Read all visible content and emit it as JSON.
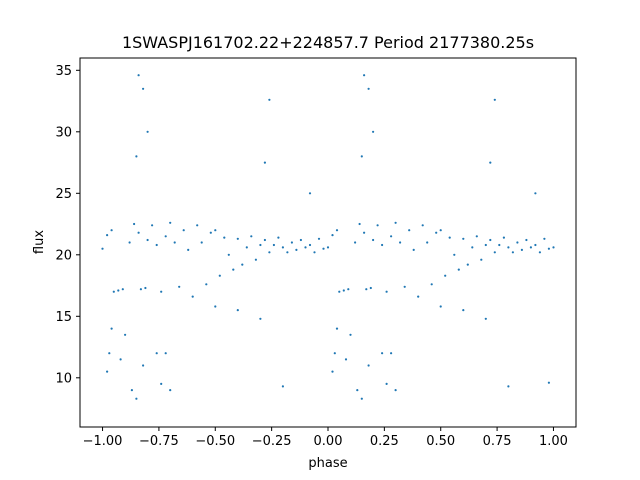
{
  "chart_data": {
    "type": "scatter",
    "title": "1SWASPJ161702.22+224857.7 Period 2177380.25s",
    "xlabel": "phase",
    "ylabel": "flux",
    "xlim": [
      -1.1,
      1.1
    ],
    "ylim": [
      6.0,
      36.0
    ],
    "xticks": [
      -1.0,
      -0.75,
      -0.5,
      -0.25,
      0.0,
      0.25,
      0.5,
      0.75,
      1.0
    ],
    "xtick_labels": [
      "−1.00",
      "−0.75",
      "−0.50",
      "−0.25",
      "0.00",
      "0.25",
      "0.50",
      "0.75",
      "1.00"
    ],
    "yticks": [
      10,
      15,
      20,
      25,
      30,
      35
    ],
    "ytick_labels": [
      "10",
      "15",
      "20",
      "25",
      "30",
      "35"
    ],
    "grid": false,
    "marker_color": "#1f77b4",
    "series": [
      {
        "values_description_omitted": true,
        "points": [
          [
            -1.0,
            20.5
          ],
          [
            -0.98,
            21.6
          ],
          [
            -0.96,
            22.0
          ],
          [
            -0.95,
            17.0
          ],
          [
            -0.93,
            17.1
          ],
          [
            -0.91,
            17.2
          ],
          [
            -0.88,
            21.0
          ],
          [
            -0.86,
            22.5
          ],
          [
            -0.84,
            21.8
          ],
          [
            -0.83,
            17.2
          ],
          [
            -0.81,
            17.3
          ],
          [
            -0.8,
            21.2
          ],
          [
            -0.78,
            22.4
          ],
          [
            -0.76,
            20.8
          ],
          [
            -0.74,
            17.0
          ],
          [
            -0.72,
            21.5
          ],
          [
            -0.7,
            22.6
          ],
          [
            -0.68,
            21.0
          ],
          [
            -0.66,
            17.4
          ],
          [
            -0.64,
            22.0
          ],
          [
            -0.62,
            20.4
          ],
          [
            -0.6,
            16.6
          ],
          [
            -0.58,
            22.4
          ],
          [
            -0.56,
            21.0
          ],
          [
            -0.54,
            17.6
          ],
          [
            -0.52,
            21.8
          ],
          [
            -0.5,
            22.0
          ],
          [
            -0.48,
            18.3
          ],
          [
            -0.46,
            21.4
          ],
          [
            -0.44,
            20.0
          ],
          [
            -0.42,
            18.8
          ],
          [
            -0.4,
            21.3
          ],
          [
            -0.38,
            19.2
          ],
          [
            -0.36,
            20.6
          ],
          [
            -0.34,
            21.5
          ],
          [
            -0.32,
            19.6
          ],
          [
            -0.3,
            20.8
          ],
          [
            -0.28,
            21.2
          ],
          [
            -0.26,
            20.2
          ],
          [
            -0.24,
            20.8
          ],
          [
            -0.22,
            21.4
          ],
          [
            -0.2,
            20.6
          ],
          [
            -0.18,
            20.2
          ],
          [
            -0.16,
            21.0
          ],
          [
            -0.14,
            20.4
          ],
          [
            -0.12,
            21.2
          ],
          [
            -0.1,
            20.6
          ],
          [
            -0.08,
            20.8
          ],
          [
            -0.06,
            20.2
          ],
          [
            -0.04,
            21.3
          ],
          [
            -0.02,
            20.5
          ],
          [
            0.0,
            20.6
          ],
          [
            0.02,
            21.6
          ],
          [
            0.04,
            22.0
          ],
          [
            0.05,
            17.0
          ],
          [
            0.07,
            17.1
          ],
          [
            0.09,
            17.2
          ],
          [
            0.12,
            21.0
          ],
          [
            0.14,
            22.5
          ],
          [
            0.16,
            21.8
          ],
          [
            0.17,
            17.2
          ],
          [
            0.19,
            17.3
          ],
          [
            0.2,
            21.2
          ],
          [
            0.22,
            22.4
          ],
          [
            0.24,
            20.8
          ],
          [
            0.26,
            17.0
          ],
          [
            0.28,
            21.5
          ],
          [
            0.3,
            22.6
          ],
          [
            0.32,
            21.0
          ],
          [
            0.34,
            17.4
          ],
          [
            0.36,
            22.0
          ],
          [
            0.38,
            20.4
          ],
          [
            0.4,
            16.6
          ],
          [
            0.42,
            22.4
          ],
          [
            0.44,
            21.0
          ],
          [
            0.46,
            17.6
          ],
          [
            0.48,
            21.8
          ],
          [
            0.5,
            22.0
          ],
          [
            0.52,
            18.3
          ],
          [
            0.54,
            21.4
          ],
          [
            0.56,
            20.0
          ],
          [
            0.58,
            18.8
          ],
          [
            0.6,
            21.3
          ],
          [
            0.62,
            19.2
          ],
          [
            0.64,
            20.6
          ],
          [
            0.66,
            21.5
          ],
          [
            0.68,
            19.6
          ],
          [
            0.7,
            20.8
          ],
          [
            0.72,
            21.2
          ],
          [
            0.74,
            20.2
          ],
          [
            0.76,
            20.8
          ],
          [
            0.78,
            21.4
          ],
          [
            0.8,
            20.6
          ],
          [
            0.82,
            20.2
          ],
          [
            0.84,
            21.0
          ],
          [
            0.86,
            20.4
          ],
          [
            0.88,
            21.2
          ],
          [
            0.9,
            20.6
          ],
          [
            0.92,
            20.8
          ],
          [
            0.94,
            20.2
          ],
          [
            0.96,
            21.3
          ],
          [
            0.98,
            20.5
          ],
          [
            1.0,
            20.6
          ],
          [
            -0.84,
            34.6
          ],
          [
            -0.82,
            33.5
          ],
          [
            -0.8,
            30.0
          ],
          [
            -0.85,
            28.0
          ],
          [
            0.16,
            34.6
          ],
          [
            0.18,
            33.5
          ],
          [
            0.2,
            30.0
          ],
          [
            0.15,
            28.0
          ],
          [
            -0.26,
            32.6
          ],
          [
            0.74,
            32.6
          ],
          [
            -0.28,
            27.5
          ],
          [
            0.72,
            27.5
          ],
          [
            -0.08,
            25.0
          ],
          [
            0.92,
            25.0
          ],
          [
            -0.98,
            10.5
          ],
          [
            -0.97,
            12.0
          ],
          [
            -0.96,
            14.0
          ],
          [
            -0.92,
            11.5
          ],
          [
            -0.9,
            13.5
          ],
          [
            -0.87,
            9.0
          ],
          [
            -0.85,
            8.3
          ],
          [
            -0.82,
            11.0
          ],
          [
            -0.76,
            12.0
          ],
          [
            -0.74,
            9.5
          ],
          [
            -0.72,
            12.0
          ],
          [
            -0.7,
            9.0
          ],
          [
            0.02,
            10.5
          ],
          [
            0.03,
            12.0
          ],
          [
            0.04,
            14.0
          ],
          [
            0.08,
            11.5
          ],
          [
            0.1,
            13.5
          ],
          [
            0.13,
            9.0
          ],
          [
            0.15,
            8.3
          ],
          [
            0.18,
            11.0
          ],
          [
            0.24,
            12.0
          ],
          [
            0.26,
            9.5
          ],
          [
            0.28,
            12.0
          ],
          [
            0.3,
            9.0
          ],
          [
            -0.2,
            9.3
          ],
          [
            0.8,
            9.3
          ],
          [
            0.98,
            9.6
          ],
          [
            -0.4,
            15.5
          ],
          [
            0.6,
            15.5
          ],
          [
            -0.3,
            14.8
          ],
          [
            0.7,
            14.8
          ],
          [
            -0.5,
            15.8
          ],
          [
            0.5,
            15.8
          ]
        ]
      }
    ]
  }
}
